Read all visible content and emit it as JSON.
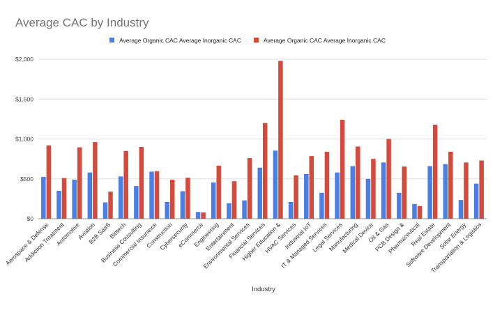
{
  "chart_data": {
    "type": "bar",
    "title": "Average CAC by Industry",
    "xlabel": "Industry",
    "ylabel": "",
    "ylim": [
      0,
      2000
    ],
    "yticks": [
      "$0",
      "$500",
      "$1,000",
      "$1,500",
      "$2,000"
    ],
    "ytick_values": [
      0,
      500,
      1000,
      1500,
      2000
    ],
    "grid": true,
    "legend_position": "top",
    "categories": [
      "Aerospace & Defense",
      "Addiction Treatment",
      "Automotive",
      "Aviation",
      "B2B SaaS",
      "Biotech",
      "Business Consulting",
      "Commercial Insurance",
      "Construction",
      "Cybersecurity",
      "eCommerce",
      "Engineering",
      "Entertainment",
      "Environmental Services",
      "Financial Services",
      "Higher Education &",
      "HVAC Services",
      "Industrial IoT",
      "IT & Managed Services",
      "Legal Services",
      "Manufacturing",
      "Medical Device",
      "Oil & Gas",
      "PCB Design &",
      "Pharmaceutical",
      "Real Estate",
      "Software Development",
      "Solar Energy",
      "Transportation & Logistics"
    ],
    "series": [
      {
        "name": "Average Organic CAC Average Inorganic CAC",
        "color": "#4a7fe6",
        "values": [
          525,
          350,
          490,
          580,
          205,
          530,
          410,
          590,
          210,
          345,
          85,
          455,
          195,
          230,
          640,
          855,
          210,
          560,
          325,
          580,
          660,
          500,
          705,
          325,
          185,
          660,
          685,
          235,
          440
        ]
      },
      {
        "name": "Average Organic CAC Average Inorganic CAC",
        "color": "#d44a3c",
        "values": [
          920,
          510,
          895,
          960,
          340,
          850,
          900,
          595,
          490,
          515,
          80,
          665,
          470,
          760,
          1200,
          1980,
          545,
          785,
          840,
          1240,
          905,
          750,
          1000,
          655,
          160,
          1180,
          840,
          705,
          730
        ]
      }
    ]
  }
}
